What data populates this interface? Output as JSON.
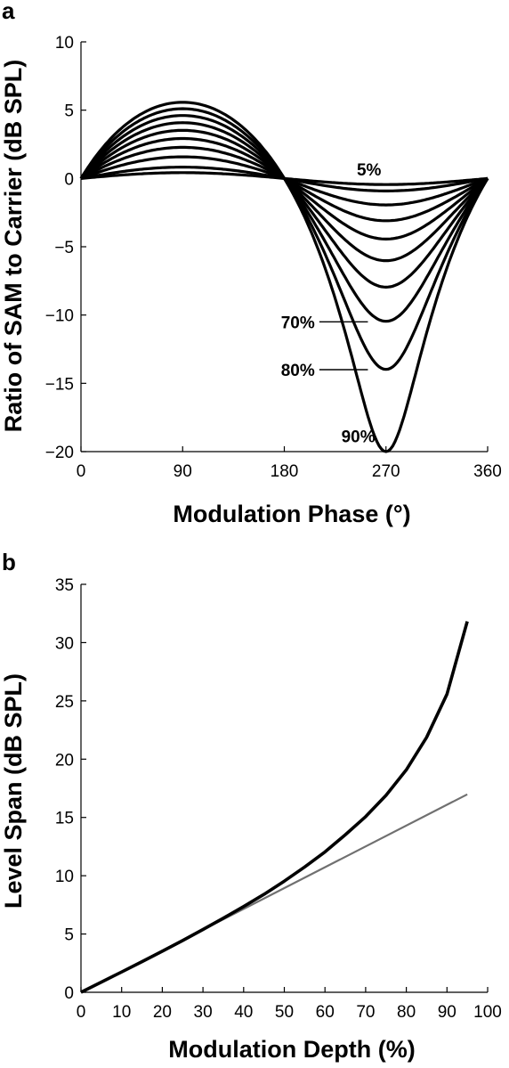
{
  "chart_data": [
    {
      "panel": "a",
      "type": "line",
      "xlabel": "Modulation Phase (°)",
      "ylabel": "Ratio of SAM to Carrier (dB SPL)",
      "xlim": [
        0,
        360
      ],
      "ylim": [
        -20,
        10
      ],
      "xticks": [
        0,
        90,
        180,
        270,
        360
      ],
      "yticks": [
        10,
        5,
        0,
        -5,
        -10,
        -15,
        -20
      ],
      "modulation_depths_percent": [
        5,
        10,
        20,
        30,
        40,
        50,
        60,
        70,
        80,
        90
      ],
      "annotations": [
        {
          "text": "5%",
          "x": 270,
          "y": -0.4
        },
        {
          "text": "70%",
          "x": 270,
          "y": -10.5
        },
        {
          "text": "80%",
          "x": 270,
          "y": -14
        },
        {
          "text": "90%",
          "x": 270,
          "y": -20
        }
      ],
      "series_color": "#000000"
    },
    {
      "panel": "b",
      "type": "line",
      "xlabel": "Modulation Depth (%)",
      "ylabel": "Level Span (dB SPL)",
      "xlim": [
        0,
        100
      ],
      "ylim": [
        0,
        35
      ],
      "xticks": [
        0,
        10,
        20,
        30,
        40,
        50,
        60,
        70,
        80,
        90,
        100
      ],
      "yticks": [
        35,
        30,
        25,
        20,
        15,
        10,
        5,
        0
      ],
      "series": [
        {
          "x": [
            0,
            5,
            10,
            15,
            20,
            25,
            30,
            35,
            40,
            45,
            50,
            55,
            60,
            65,
            70,
            75,
            80,
            85,
            90,
            95
          ],
          "values": [
            0,
            0.87,
            1.74,
            2.63,
            3.52,
            4.44,
            5.39,
            6.36,
            7.36,
            8.4,
            9.54,
            10.75,
            12.04,
            13.52,
            15.07,
            16.9,
            19.08,
            21.87,
            25.58,
            31.82
          ],
          "color": "#000000"
        },
        {
          "x": [
            0,
            95
          ],
          "values": [
            0,
            16.98
          ],
          "color": "#707070"
        }
      ]
    }
  ]
}
